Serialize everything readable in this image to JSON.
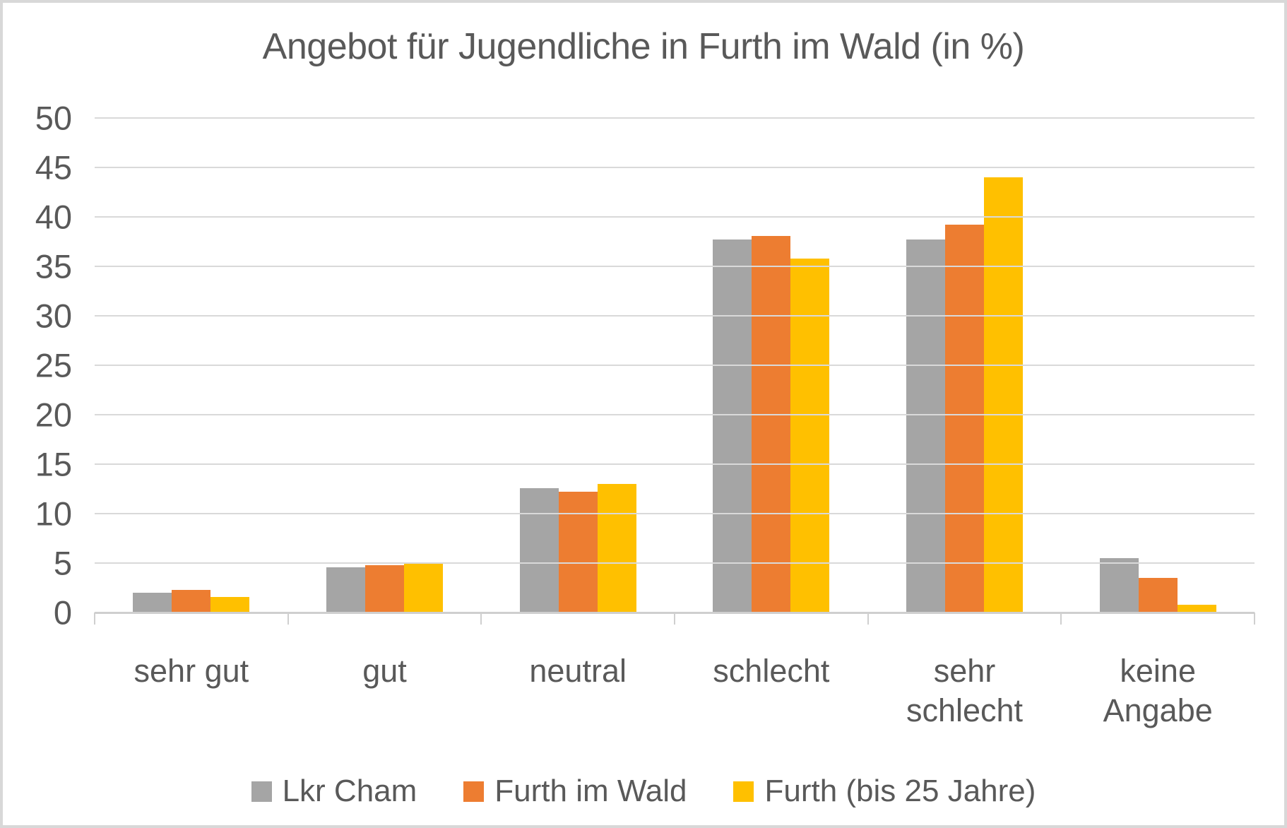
{
  "title": "Angebot für Jugendliche in Furth im Wald (in %)",
  "colors": {
    "accent_gray": "#A5A5A5",
    "accent_orange": "#ED7D31",
    "accent_yellow": "#FFC000",
    "gridline": "#D9D9D9",
    "axis_line": "#CFCFCF",
    "text": "#595959",
    "frame_border": "#D8D8D8",
    "background": "#FFFFFF"
  },
  "y_axis": {
    "min": 0,
    "max": 50,
    "step": 5,
    "tick_labels": [
      "0",
      "5",
      "10",
      "15",
      "20",
      "25",
      "30",
      "35",
      "40",
      "45",
      "50"
    ]
  },
  "chart_data": {
    "type": "bar",
    "title": "Angebot für Jugendliche in Furth im Wald (in %)",
    "categories": [
      "sehr gut",
      "gut",
      "neutral",
      "schlecht",
      "sehr\nschlecht",
      "keine\nAngabe"
    ],
    "series": [
      {
        "name": "Lkr Cham",
        "color": "#A5A5A5",
        "values": [
          2.0,
          4.6,
          12.6,
          37.7,
          37.7,
          5.5
        ]
      },
      {
        "name": "Furth im Wald",
        "color": "#ED7D31",
        "values": [
          2.3,
          4.8,
          12.2,
          38.1,
          39.2,
          3.5
        ]
      },
      {
        "name": "Furth (bis 25 Jahre)",
        "color": "#FFC000",
        "values": [
          1.6,
          4.9,
          13.0,
          35.8,
          44.0,
          0.8
        ]
      }
    ],
    "xlabel": "",
    "ylabel": "",
    "ylim": [
      0,
      50
    ],
    "ytick_step": 5,
    "grid": true,
    "legend_position": "bottom"
  },
  "legend": {
    "items": [
      {
        "label": "Lkr Cham",
        "color": "#A5A5A5"
      },
      {
        "label": "Furth im Wald",
        "color": "#ED7D31"
      },
      {
        "label": "Furth (bis 25 Jahre)",
        "color": "#FFC000"
      }
    ]
  }
}
